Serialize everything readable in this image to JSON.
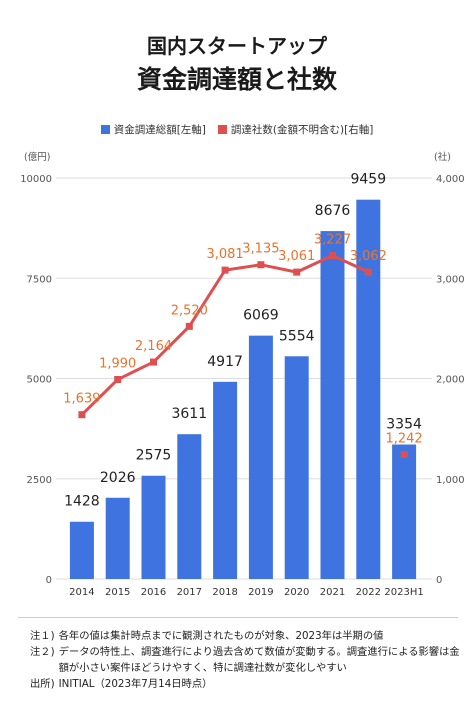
{
  "header": {
    "line1": "国内スタートアップ",
    "line2": "資金調達額と社数"
  },
  "colors": {
    "bar": "#3f74e0",
    "line": "#e04f4f",
    "line_label": "#e8742f",
    "grid": "#dddddd",
    "axis_text": "#555555"
  },
  "chart_data": {
    "type": "bar+line",
    "categories": [
      "2014",
      "2015",
      "2016",
      "2017",
      "2018",
      "2019",
      "2020",
      "2021",
      "2022",
      "2023H1"
    ],
    "series": [
      {
        "name": "資金調達総額[左軸]",
        "type": "bar",
        "axis": "left",
        "values": [
          1428,
          2026,
          2575,
          3611,
          4917,
          6069,
          5554,
          8676,
          9459,
          3354
        ],
        "labels": [
          "1428",
          "2026",
          "2575",
          "3611",
          "4917",
          "6069",
          "5554",
          "8676",
          "9459",
          "3354"
        ]
      },
      {
        "name": "調達社数(金額不明含む)[右軸]",
        "type": "line",
        "axis": "right",
        "values": [
          1639,
          1990,
          2164,
          2520,
          3081,
          3135,
          3061,
          3227,
          3062,
          1242
        ],
        "labels": [
          "1,639",
          "1,990",
          "2,164",
          "2,520",
          "3,081",
          "3,135",
          "3,061",
          "3,227",
          "3,062",
          "1,242"
        ],
        "connected_points": 9
      }
    ],
    "left_axis": {
      "unit": "(億円)",
      "ylim": [
        0,
        10000
      ],
      "ticks": [
        0,
        2500,
        5000,
        7500,
        10000
      ],
      "tick_labels": [
        "0",
        "2500",
        "5000",
        "7500",
        "10000"
      ]
    },
    "right_axis": {
      "unit": "(社)",
      "ylim": [
        0,
        4000
      ],
      "ticks": [
        0,
        1000,
        2000,
        3000,
        4000
      ],
      "tick_labels": [
        "0",
        "1,000",
        "2,000",
        "3,000",
        "4,000"
      ]
    },
    "grid": true,
    "legend_position": "top"
  },
  "notes": [
    {
      "tag": "注１)",
      "text": "各年の値は集計時点までに観測されたものが対象、2023年は半期の値"
    },
    {
      "tag": "注２)",
      "text": "データの特性上、調査進行により過去含めて数値が変動する。調査進行による影響は金額が小さい案件ほどうけやすく、特に調達社数が変化しやすい"
    },
    {
      "tag": "出所)",
      "text": "INITIAL（2023年7月14日時点）"
    }
  ]
}
